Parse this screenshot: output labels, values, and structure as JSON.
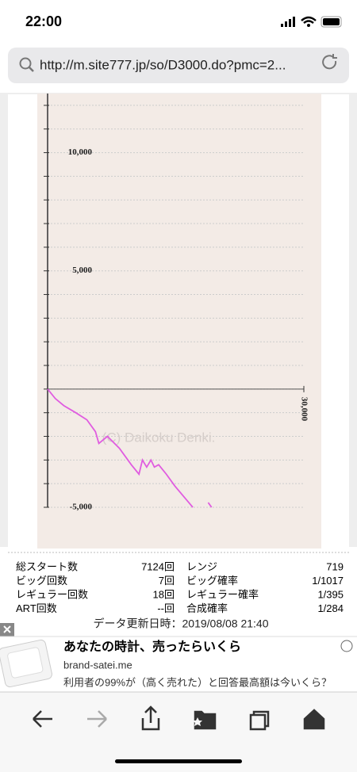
{
  "status_bar": {
    "time": "22:00"
  },
  "address_bar": {
    "url": "http://m.site777.jp/so/D3000.do?pmc=2..."
  },
  "chart_data": {
    "type": "line",
    "watermark": "(C) Daikoku Denki.",
    "x": [
      0,
      900,
      1900,
      3300,
      4600,
      5600,
      6000,
      7000,
      8400,
      9800,
      10700,
      11100,
      11600,
      12100,
      12500,
      13000,
      13900,
      14900,
      16300,
      17000,
      18000,
      18800,
      19200
    ],
    "series": [
      {
        "color": "#e05ce0",
        "values": [
          0,
          -400,
          -700,
          -1000,
          -1300,
          -1800,
          -2300,
          -2000,
          -2500,
          -3200,
          -3600,
          -3000,
          -3300,
          -3000,
          -3300,
          -3200,
          -3600,
          -4100,
          -4700,
          -5000,
          null,
          -4800,
          -5000
        ]
      }
    ],
    "xlim": [
      0,
      30000
    ],
    "xticks": [
      {
        "value": 30000,
        "label": "30,000"
      }
    ],
    "ylim": [
      -5000,
      12500
    ],
    "yticks": [
      {
        "value": 10000,
        "label": "10,000"
      },
      {
        "value": 5000,
        "label": "5,000"
      },
      {
        "value": -5000,
        "label": "-5,000"
      }
    ],
    "minor_yticks": [
      -4000,
      -3000,
      -2000,
      -1000,
      0,
      1000,
      2000,
      3000,
      4000,
      6000,
      7000,
      8000,
      9000,
      11000,
      12000
    ],
    "grid": true
  },
  "stats": {
    "rows": [
      [
        "総スタート数",
        "7124回",
        "レンジ",
        "719"
      ],
      [
        "ビッグ回数",
        "7回",
        "ビッグ確率",
        "1/1017"
      ],
      [
        "レギュラー回数",
        "18回",
        "レギュラー確率",
        "1/395"
      ],
      [
        "ART回数",
        "--回",
        "合成確率",
        "1/284"
      ]
    ],
    "updated": "データ更新日時：2019/08/08 21:40"
  },
  "ad": {
    "title": "あなたの時計、売ったらいくら",
    "domain": "brand-satei.me",
    "text": "利用者の99%が（高く売れた）と回答最高額は今いくら？"
  }
}
